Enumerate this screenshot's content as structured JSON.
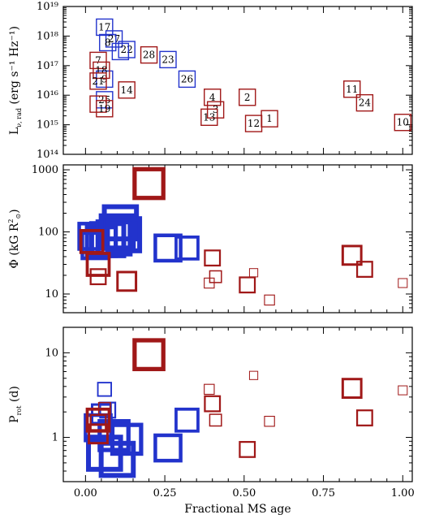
{
  "chart_data": [
    {
      "type": "scatter",
      "panel": "top",
      "ylabel": "L_{ν, rad} (erg s^{-1} Hz^{-1})",
      "ylabel_parts": {
        "main": "L",
        "sub": "ν, rad",
        "units": "(erg s⁻¹ Hz⁻¹)"
      },
      "yscale": "log",
      "ylim": [
        100000000000000.0,
        1e+19
      ],
      "xlim": [
        -0.07,
        1.03
      ],
      "yticks": [
        {
          "value": 100000000000000.0,
          "label": "10¹⁴"
        },
        {
          "value": 1000000000000000.0,
          "label": "10¹⁵"
        },
        {
          "value": 1e+16,
          "label": "10¹⁶"
        },
        {
          "value": 1e+17,
          "label": "10¹⁷"
        },
        {
          "value": 1e+18,
          "label": "10¹⁸"
        },
        {
          "value": 1e+19,
          "label": "10¹⁹"
        }
      ],
      "series": [
        {
          "color": "#2233cc",
          "points": [
            {
              "label": "17",
              "x": 0.06,
              "y": 2e+18
            },
            {
              "label": "27",
              "x": 0.09,
              "y": 8e+17
            },
            {
              "label": "8",
              "x": 0.07,
              "y": 6e+17
            },
            {
              "label": "22",
              "x": 0.13,
              "y": 3.5e+17
            },
            {
              "label": "",
              "x": 0.11,
              "y": 3e+17
            },
            {
              "label": "23",
              "x": 0.26,
              "y": 1.6e+17
            },
            {
              "label": "26",
              "x": 0.32,
              "y": 3.5e+16
            },
            {
              "label": "9",
              "x": 0.06,
              "y": 3.5e+16
            },
            {
              "label": "25",
              "x": 0.06,
              "y": 7000000000000000.0
            }
          ]
        },
        {
          "color": "#a01818",
          "points": [
            {
              "label": "28",
              "x": 0.2,
              "y": 2.3e+17
            },
            {
              "label": "7",
              "x": 0.04,
              "y": 1.5e+17
            },
            {
              "label": "18",
              "x": 0.05,
              "y": 7e+16
            },
            {
              "label": "21",
              "x": 0.04,
              "y": 3e+16
            },
            {
              "label": "14",
              "x": 0.13,
              "y": 1.5e+16
            },
            {
              "label": "",
              "x": 0.04,
              "y": 5000000000000000.0
            },
            {
              "label": "19",
              "x": 0.06,
              "y": 3500000000000000.0
            },
            {
              "label": "4",
              "x": 0.4,
              "y": 8500000000000000.0
            },
            {
              "label": "3",
              "x": 0.41,
              "y": 3200000000000000.0
            },
            {
              "label": "13",
              "x": 0.39,
              "y": 1800000000000000.0
            },
            {
              "label": "2",
              "x": 0.51,
              "y": 8500000000000000.0
            },
            {
              "label": "12",
              "x": 0.53,
              "y": 1100000000000000.0
            },
            {
              "label": "1",
              "x": 0.58,
              "y": 1600000000000000.0
            },
            {
              "label": "11",
              "x": 0.84,
              "y": 1.6e+16
            },
            {
              "label": "24",
              "x": 0.88,
              "y": 5500000000000000.0
            },
            {
              "label": "10",
              "x": 1.0,
              "y": 1200000000000000.0
            }
          ]
        }
      ]
    },
    {
      "type": "scatter",
      "panel": "middle",
      "ylabel": "Φ (kG R²⊙)",
      "ylabel_parts": {
        "main": "Φ (kG R",
        "sup": "2",
        "sub": "⊙",
        "end": ")"
      },
      "yscale": "log",
      "ylim": [
        5,
        1200
      ],
      "xlim": [
        -0.07,
        1.03
      ],
      "yticks": [
        {
          "value": 10,
          "label": "10"
        },
        {
          "value": 100,
          "label": "100"
        },
        {
          "value": 1000,
          "label": "1000"
        }
      ],
      "series": [
        {
          "color": "#2233cc",
          "points": [
            {
              "x": 0.02,
              "y": 85,
              "size": 6
            },
            {
              "x": 0.03,
              "y": 60,
              "size": 6
            },
            {
              "x": 0.05,
              "y": 70,
              "size": 7
            },
            {
              "x": 0.07,
              "y": 75,
              "size": 8
            },
            {
              "x": 0.09,
              "y": 80,
              "size": 8
            },
            {
              "x": 0.11,
              "y": 140,
              "size": 8
            },
            {
              "x": 0.12,
              "y": 90,
              "size": 8
            },
            {
              "x": 0.1,
              "y": 100,
              "size": 8
            },
            {
              "x": 0.26,
              "y": 55,
              "size": 6
            },
            {
              "x": 0.32,
              "y": 55,
              "size": 5
            }
          ]
        },
        {
          "color": "#a01818",
          "points": [
            {
              "x": 0.2,
              "y": 600,
              "size": 7
            },
            {
              "x": 0.02,
              "y": 70,
              "size": 5
            },
            {
              "x": 0.04,
              "y": 30,
              "size": 5
            },
            {
              "x": 0.04,
              "y": 19,
              "size": 3
            },
            {
              "x": 0.13,
              "y": 16,
              "size": 4
            },
            {
              "x": 0.4,
              "y": 38,
              "size": 3
            },
            {
              "x": 0.41,
              "y": 19,
              "size": 2
            },
            {
              "x": 0.39,
              "y": 15,
              "size": 1.5
            },
            {
              "x": 0.51,
              "y": 14,
              "size": 3
            },
            {
              "x": 0.53,
              "y": 22,
              "size": 1
            },
            {
              "x": 0.58,
              "y": 8,
              "size": 1.5
            },
            {
              "x": 0.84,
              "y": 42,
              "size": 4
            },
            {
              "x": 0.88,
              "y": 25,
              "size": 3
            },
            {
              "x": 1.0,
              "y": 15,
              "size": 1.2
            }
          ]
        }
      ]
    },
    {
      "type": "scatter",
      "panel": "bottom",
      "ylabel": "P_rot (d)",
      "ylabel_parts": {
        "main": "P",
        "sub": "rot",
        "end": " (d)"
      },
      "xlabel": "Fractional MS age",
      "yscale": "log",
      "ylim": [
        0.3,
        20
      ],
      "xlim": [
        -0.07,
        1.03
      ],
      "yticks": [
        {
          "value": 1,
          "label": "1"
        },
        {
          "value": 10,
          "label": "10"
        }
      ],
      "xticks": [
        {
          "value": 0.0,
          "label": "0.00"
        },
        {
          "value": 0.25,
          "label": "0.25"
        },
        {
          "value": 0.5,
          "label": "0.50"
        },
        {
          "value": 0.75,
          "label": "0.75"
        },
        {
          "value": 1.0,
          "label": "1.00"
        }
      ],
      "series": [
        {
          "color": "#2233cc",
          "points": [
            {
              "x": 0.06,
              "y": 3.7,
              "size": 2.5
            },
            {
              "x": 0.07,
              "y": 2.1,
              "size": 3
            },
            {
              "x": 0.05,
              "y": 1.9,
              "size": 4
            },
            {
              "x": 0.04,
              "y": 1.3,
              "size": 6
            },
            {
              "x": 0.09,
              "y": 1.05,
              "size": 7
            },
            {
              "x": 0.13,
              "y": 0.95,
              "size": 7
            },
            {
              "x": 0.06,
              "y": 0.65,
              "size": 8
            },
            {
              "x": 0.1,
              "y": 0.55,
              "size": 8
            },
            {
              "x": 0.26,
              "y": 0.75,
              "size": 6
            },
            {
              "x": 0.32,
              "y": 1.6,
              "size": 5
            }
          ]
        },
        {
          "color": "#a01818",
          "points": [
            {
              "x": 0.2,
              "y": 9.5,
              "size": 7
            },
            {
              "x": 0.04,
              "y": 1.6,
              "size": 5
            },
            {
              "x": 0.04,
              "y": 1.5,
              "size": 3
            },
            {
              "x": 0.06,
              "y": 2.2,
              "size": 2
            },
            {
              "x": 0.04,
              "y": 1.1,
              "size": 4
            },
            {
              "x": 0.39,
              "y": 3.7,
              "size": 1.5
            },
            {
              "x": 0.4,
              "y": 2.5,
              "size": 3
            },
            {
              "x": 0.41,
              "y": 1.6,
              "size": 2
            },
            {
              "x": 0.51,
              "y": 0.72,
              "size": 3
            },
            {
              "x": 0.53,
              "y": 5.4,
              "size": 1
            },
            {
              "x": 0.58,
              "y": 1.55,
              "size": 1.5
            },
            {
              "x": 0.84,
              "y": 3.8,
              "size": 4
            },
            {
              "x": 0.88,
              "y": 1.7,
              "size": 3
            },
            {
              "x": 1.0,
              "y": 3.6,
              "size": 1.2
            }
          ]
        }
      ]
    }
  ]
}
